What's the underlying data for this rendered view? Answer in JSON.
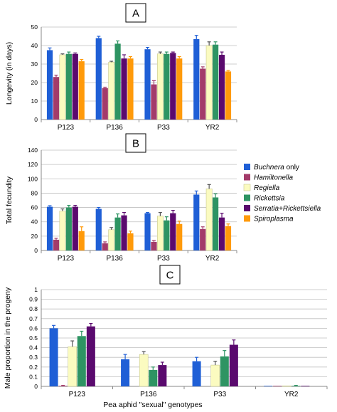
{
  "colors": {
    "Buchnera only": "#1f5fd6",
    "Hamiltonella": "#a33b6a",
    "Regiella": "#fbfbc0",
    "Rickettsia": "#2e9463",
    "Serratia+Rickettsiella": "#5a0a6e",
    "Spiroplasma": "#ff9a0a"
  },
  "legend": {
    "position": "right of panel B",
    "entries": [
      "Buchnera only",
      "Hamiltonella",
      "Regiella",
      "Rickettsia",
      "Serratia+Rickettsiella",
      "Spiroplasma"
    ]
  },
  "xlabel": "Pea aphid \"sexual\" genotypes",
  "chart_data": [
    {
      "type": "bar",
      "panel_label": "A",
      "ylabel": "Longevity (in days)",
      "ylim": [
        0,
        50
      ],
      "yticks": [
        0,
        10,
        20,
        30,
        40,
        50
      ],
      "grid": true,
      "categories": [
        "P123",
        "P136",
        "P33",
        "YR2"
      ],
      "series": [
        {
          "name": "Buchnera only",
          "values": [
            37.5,
            44,
            38,
            43.5
          ],
          "errors": [
            1.2,
            1.0,
            1.0,
            2.0
          ]
        },
        {
          "name": "Hamiltonella",
          "values": [
            23,
            17,
            19,
            27.5
          ],
          "errors": [
            1.0,
            0.5,
            2.0,
            1.0
          ]
        },
        {
          "name": "Regiella",
          "values": [
            35,
            31,
            35.5,
            40
          ],
          "errors": [
            0.5,
            0.5,
            1.0,
            2.0
          ]
        },
        {
          "name": "Rickettsia",
          "values": [
            35.5,
            41,
            35.5,
            40.5
          ],
          "errors": [
            1.0,
            1.5,
            1.0,
            1.5
          ]
        },
        {
          "name": "Serratia+Rickettsiella",
          "values": [
            35.5,
            33,
            36,
            35
          ],
          "errors": [
            0.5,
            2.0,
            0.5,
            1.5
          ]
        },
        {
          "name": "Spiroplasma",
          "values": [
            31.5,
            33,
            33,
            26
          ],
          "errors": [
            1.0,
            1.0,
            1.0,
            0.5
          ]
        }
      ]
    },
    {
      "type": "bar",
      "panel_label": "B",
      "ylabel": "Total fecundity",
      "ylim": [
        0,
        140
      ],
      "yticks": [
        0,
        20,
        40,
        60,
        80,
        100,
        120,
        140
      ],
      "grid": true,
      "categories": [
        "P123",
        "P136",
        "P33",
        "YR2"
      ],
      "series": [
        {
          "name": "Buchnera only",
          "values": [
            61,
            58,
            52,
            78
          ],
          "errors": [
            1.5,
            2.0,
            1.0,
            5.0
          ]
        },
        {
          "name": "Hamiltonella",
          "values": [
            15,
            10,
            12,
            30
          ],
          "errors": [
            2.0,
            2.0,
            2.0,
            3.0
          ]
        },
        {
          "name": "Regiella",
          "values": [
            55,
            29,
            48,
            86
          ],
          "errors": [
            3.0,
            3.0,
            5.0,
            6.0
          ]
        },
        {
          "name": "Rickettsia",
          "values": [
            60,
            46,
            42,
            74
          ],
          "errors": [
            3.0,
            5.0,
            5.0,
            5.0
          ]
        },
        {
          "name": "Serratia+Rickettsiella",
          "values": [
            61,
            49,
            52,
            46
          ],
          "errors": [
            2.0,
            4.0,
            4.0,
            6.0
          ]
        },
        {
          "name": "Spiroplasma",
          "values": [
            27,
            24,
            37,
            34
          ],
          "errors": [
            6.0,
            3.0,
            4.0,
            3.0
          ]
        }
      ]
    },
    {
      "type": "bar",
      "panel_label": "C",
      "ylabel": "Male proportion  in the progeny",
      "ylim": [
        0,
        1
      ],
      "yticks": [
        0,
        0.1,
        0.2,
        0.3,
        0.4,
        0.5,
        0.6,
        0.7,
        0.8,
        0.9,
        1
      ],
      "grid": true,
      "categories": [
        "P123",
        "P136",
        "P33",
        "YR2"
      ],
      "series": [
        {
          "name": "Buchnera only",
          "values": [
            0.6,
            0.28,
            0.26,
            0.0
          ],
          "errors": [
            0.03,
            0.05,
            0.04,
            0.0
          ]
        },
        {
          "name": "Hamiltonella",
          "values": [
            0.0,
            null,
            null,
            0.0
          ],
          "errors": [
            0.01,
            0,
            0,
            0.0
          ]
        },
        {
          "name": "Regiella",
          "values": [
            0.41,
            0.33,
            0.22,
            0.0
          ],
          "errors": [
            0.06,
            0.03,
            0.04,
            0.0
          ]
        },
        {
          "name": "Rickettsia",
          "values": [
            0.52,
            0.17,
            0.31,
            0.0
          ],
          "errors": [
            0.05,
            0.03,
            0.06,
            0.01
          ]
        },
        {
          "name": "Serratia+Rickettsiella",
          "values": [
            0.62,
            0.22,
            0.43,
            0.0
          ],
          "errors": [
            0.03,
            0.03,
            0.05,
            0.0
          ]
        },
        {
          "name": "Spiroplasma",
          "values": [
            null,
            null,
            null,
            null
          ],
          "errors": [
            0,
            0,
            0,
            0
          ]
        }
      ]
    }
  ]
}
